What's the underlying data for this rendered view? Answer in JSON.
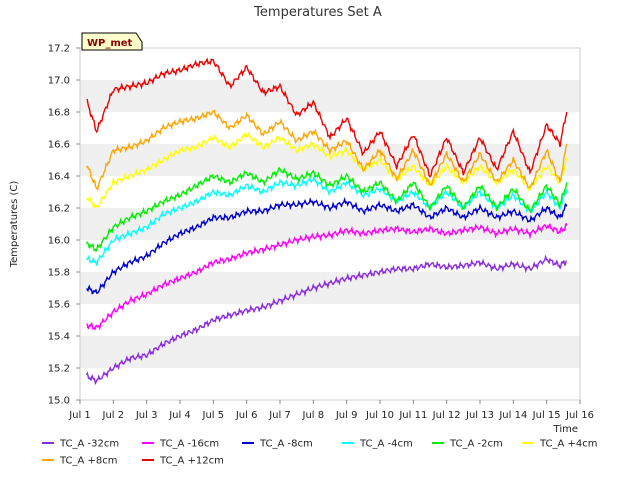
{
  "chart_data": {
    "type": "line",
    "title": "Temperatures Set A",
    "xlabel": "Time",
    "ylabel": "Temperatures (C)",
    "site_label": "WP_met",
    "xlim": [
      0,
      15
    ],
    "x_ticks": [
      "Jul 1",
      "Jul 2",
      "Jul 3",
      "Jul 4",
      "Jul 5",
      "Jul 6",
      "Jul 7",
      "Jul 8",
      "Jul 9",
      "Jul 10",
      "Jul 11",
      "Jul 12",
      "Jul 13",
      "Jul 14",
      "Jul 15",
      "Jul 16"
    ],
    "ylim": [
      15.0,
      17.2
    ],
    "y_ticks": [
      "15.0",
      "15.2",
      "15.4",
      "15.6",
      "15.8",
      "16.0",
      "16.2",
      "16.4",
      "16.6",
      "16.8",
      "17.0",
      "17.2"
    ],
    "grid": true,
    "legend_position": "bottom",
    "x_days": [
      0.2,
      0.5,
      1,
      1.5,
      2,
      2.5,
      3,
      3.5,
      4,
      4.5,
      5,
      5.5,
      6,
      6.5,
      7,
      7.5,
      8,
      8.5,
      9,
      9.5,
      10,
      10.5,
      11,
      11.5,
      12,
      12.5,
      13,
      13.5,
      14,
      14.4,
      14.6
    ],
    "series": [
      {
        "name": "TC_A -32cm",
        "color": "#8a2be2",
        "values": [
          15.15,
          15.12,
          15.2,
          15.26,
          15.28,
          15.35,
          15.4,
          15.44,
          15.5,
          15.53,
          15.56,
          15.58,
          15.62,
          15.66,
          15.7,
          15.73,
          15.76,
          15.78,
          15.8,
          15.82,
          15.82,
          15.85,
          15.83,
          15.84,
          15.86,
          15.82,
          15.85,
          15.82,
          15.88,
          15.84,
          15.87
        ]
      },
      {
        "name": "TC_A -16cm",
        "color": "#ff00ff",
        "values": [
          15.47,
          15.45,
          15.55,
          15.62,
          15.66,
          15.72,
          15.76,
          15.8,
          15.86,
          15.88,
          15.92,
          15.94,
          15.97,
          16.0,
          16.02,
          16.03,
          16.06,
          16.04,
          16.06,
          16.07,
          16.05,
          16.07,
          16.04,
          16.06,
          16.08,
          16.04,
          16.07,
          16.04,
          16.09,
          16.05,
          16.09
        ]
      },
      {
        "name": "TC_A -8cm",
        "color": "#0000cd",
        "values": [
          15.7,
          15.67,
          15.8,
          15.86,
          15.9,
          15.98,
          16.04,
          16.08,
          16.14,
          16.14,
          16.18,
          16.18,
          16.22,
          16.22,
          16.24,
          16.2,
          16.24,
          16.18,
          16.22,
          16.18,
          16.22,
          16.14,
          16.2,
          16.14,
          16.2,
          16.14,
          16.18,
          16.12,
          16.2,
          16.14,
          16.22
        ]
      },
      {
        "name": "TC_A -4cm",
        "color": "#00ffff",
        "values": [
          15.88,
          15.86,
          16.0,
          16.04,
          16.08,
          16.16,
          16.2,
          16.24,
          16.3,
          16.28,
          16.34,
          16.3,
          16.36,
          16.34,
          16.38,
          16.3,
          16.36,
          16.28,
          16.32,
          16.24,
          16.3,
          16.2,
          16.3,
          16.2,
          16.3,
          16.2,
          16.28,
          16.18,
          16.3,
          16.2,
          16.32
        ]
      },
      {
        "name": "TC_A -2cm",
        "color": "#00ee00",
        "values": [
          15.98,
          15.94,
          16.08,
          16.14,
          16.18,
          16.24,
          16.28,
          16.34,
          16.4,
          16.36,
          16.42,
          16.36,
          16.44,
          16.38,
          16.42,
          16.34,
          16.4,
          16.3,
          16.36,
          16.24,
          16.36,
          16.2,
          16.34,
          16.2,
          16.34,
          16.2,
          16.32,
          16.18,
          16.34,
          16.22,
          16.36
        ]
      },
      {
        "name": "TC_A +4cm",
        "color": "#ffff00",
        "values": [
          16.27,
          16.2,
          16.36,
          16.4,
          16.44,
          16.5,
          16.56,
          16.58,
          16.64,
          16.58,
          16.66,
          16.58,
          16.64,
          16.56,
          16.6,
          16.52,
          16.56,
          16.44,
          16.5,
          16.38,
          16.46,
          16.34,
          16.46,
          16.36,
          16.46,
          16.36,
          16.44,
          16.32,
          16.46,
          16.36,
          16.5
        ]
      },
      {
        "name": "TC_A +8cm",
        "color": "#ffa500",
        "values": [
          16.47,
          16.32,
          16.56,
          16.58,
          16.62,
          16.7,
          16.74,
          16.76,
          16.8,
          16.7,
          16.78,
          16.66,
          16.74,
          16.62,
          16.68,
          16.56,
          16.62,
          16.44,
          16.56,
          16.38,
          16.56,
          16.34,
          16.54,
          16.36,
          16.54,
          16.36,
          16.5,
          16.32,
          16.56,
          16.36,
          16.6
        ]
      },
      {
        "name": "TC_A +12cm",
        "color": "#ee0000",
        "values": [
          16.87,
          16.68,
          16.94,
          16.96,
          16.98,
          17.04,
          17.06,
          17.1,
          17.12,
          16.96,
          17.08,
          16.92,
          16.96,
          16.78,
          16.86,
          16.64,
          16.76,
          16.54,
          16.68,
          16.46,
          16.66,
          16.4,
          16.64,
          16.42,
          16.64,
          16.44,
          16.68,
          16.42,
          16.72,
          16.6,
          16.8
        ]
      }
    ]
  }
}
